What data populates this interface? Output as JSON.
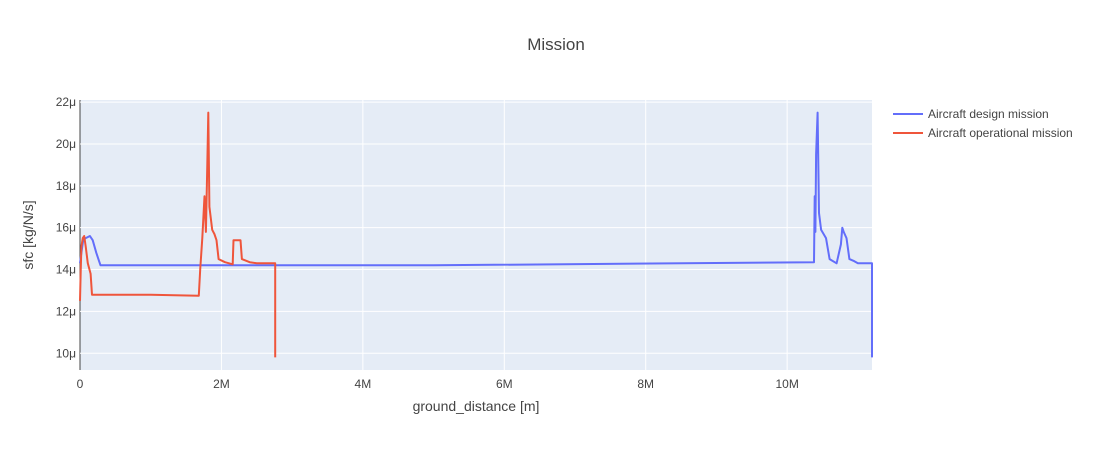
{
  "chart_data": {
    "type": "line",
    "title": "Mission",
    "xlabel": "ground_distance [m]",
    "ylabel": "sfc [kg/N/s]",
    "xlim": [
      0,
      11200000
    ],
    "ylim": [
      9.2,
      22.1
    ],
    "x_ticks": [
      {
        "value": 0,
        "label": "0"
      },
      {
        "value": 2000000,
        "label": "2M"
      },
      {
        "value": 4000000,
        "label": "4M"
      },
      {
        "value": 6000000,
        "label": "6M"
      },
      {
        "value": 8000000,
        "label": "8M"
      },
      {
        "value": 10000000,
        "label": "10M"
      }
    ],
    "y_ticks": [
      {
        "value": 10,
        "label": "10μ"
      },
      {
        "value": 12,
        "label": "12μ"
      },
      {
        "value": 14,
        "label": "14μ"
      },
      {
        "value": 16,
        "label": "16μ"
      },
      {
        "value": 18,
        "label": "18μ"
      },
      {
        "value": 20,
        "label": "20μ"
      },
      {
        "value": 22,
        "label": "22μ"
      }
    ],
    "grid": true,
    "legend_position": "top-right",
    "series": [
      {
        "name": "Aircraft design mission",
        "color": "#636efa",
        "points": [
          [
            0,
            14.3
          ],
          [
            20000,
            14.8
          ],
          [
            45000,
            15.4
          ],
          [
            80000,
            15.5
          ],
          [
            140000,
            15.6
          ],
          [
            180000,
            15.4
          ],
          [
            230000,
            14.8
          ],
          [
            270000,
            14.4
          ],
          [
            290000,
            14.2
          ],
          [
            5000000,
            14.2
          ],
          [
            10380000,
            14.35
          ],
          [
            10390000,
            17.5
          ],
          [
            10400000,
            15.8
          ],
          [
            10410000,
            19.5
          ],
          [
            10430000,
            21.5
          ],
          [
            10450000,
            16.7
          ],
          [
            10480000,
            15.9
          ],
          [
            10550000,
            15.5
          ],
          [
            10600000,
            14.5
          ],
          [
            10700000,
            14.3
          ],
          [
            10760000,
            15.2
          ],
          [
            10780000,
            16.0
          ],
          [
            10800000,
            15.8
          ],
          [
            10840000,
            15.5
          ],
          [
            10880000,
            14.5
          ],
          [
            10950000,
            14.4
          ],
          [
            11000000,
            14.3
          ],
          [
            11200000,
            14.3
          ],
          [
            11200000,
            9.8
          ]
        ]
      },
      {
        "name": "Aircraft operational mission",
        "color": "#ef553b",
        "points": [
          [
            0,
            12.5
          ],
          [
            10000,
            13.9
          ],
          [
            20000,
            15.1
          ],
          [
            40000,
            15.5
          ],
          [
            60000,
            15.6
          ],
          [
            80000,
            15.1
          ],
          [
            110000,
            14.3
          ],
          [
            150000,
            13.8
          ],
          [
            170000,
            12.8
          ],
          [
            1000000,
            12.8
          ],
          [
            1680000,
            12.75
          ],
          [
            1700000,
            14.0
          ],
          [
            1730000,
            15.5
          ],
          [
            1760000,
            17.5
          ],
          [
            1780000,
            15.8
          ],
          [
            1800000,
            19.0
          ],
          [
            1815000,
            21.5
          ],
          [
            1830000,
            17.0
          ],
          [
            1870000,
            15.9
          ],
          [
            1900000,
            15.7
          ],
          [
            1930000,
            15.4
          ],
          [
            1960000,
            14.5
          ],
          [
            2050000,
            14.35
          ],
          [
            2160000,
            14.25
          ],
          [
            2170000,
            15.4
          ],
          [
            2270000,
            15.4
          ],
          [
            2290000,
            14.5
          ],
          [
            2400000,
            14.35
          ],
          [
            2500000,
            14.3
          ],
          [
            2760000,
            14.3
          ],
          [
            2760000,
            9.8
          ]
        ]
      }
    ]
  }
}
